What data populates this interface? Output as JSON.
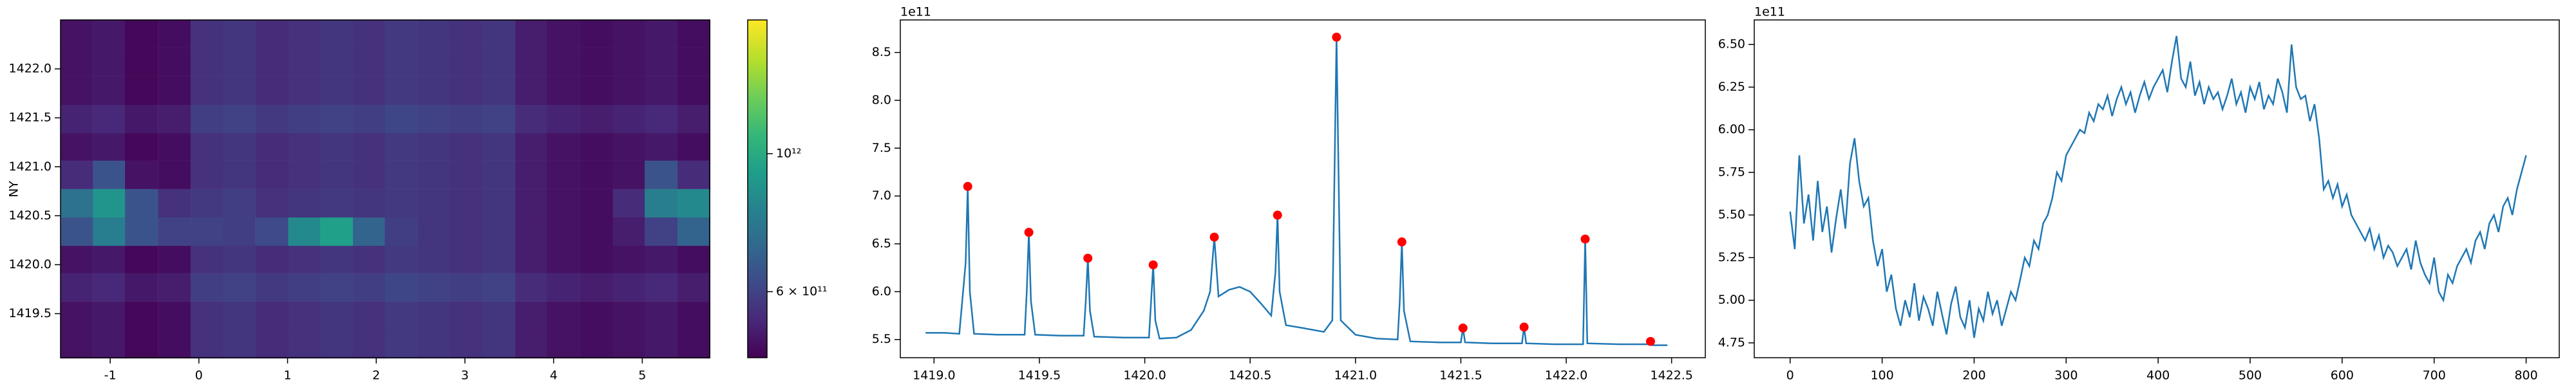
{
  "chart_data": [
    {
      "type": "heatmap",
      "ylabel": "NY",
      "x": [
        -1.38,
        -1.01,
        -0.65,
        -0.28,
        0.09,
        0.45,
        0.82,
        1.19,
        1.55,
        1.92,
        2.28,
        2.65,
        3.02,
        3.38,
        3.75,
        4.11,
        4.48,
        4.85,
        5.21,
        5.58
      ],
      "y": [
        1419.19,
        1419.48,
        1419.77,
        1420.06,
        1420.34,
        1420.63,
        1420.92,
        1421.21,
        1421.49,
        1421.78,
        1422.07,
        1422.36
      ],
      "z": [
        [
          500000000000.0,
          510000000000.0,
          480000000000.0,
          490000000000.0,
          560000000000.0,
          570000000000.0,
          550000000000.0,
          560000000000.0,
          570000000000.0,
          560000000000.0,
          580000000000.0,
          570000000000.0,
          560000000000.0,
          570000000000.0,
          520000000000.0,
          500000000000.0,
          490000000000.0,
          500000000000.0,
          510000000000.0,
          490000000000.0
        ],
        [
          500000000000.0,
          510000000000.0,
          480000000000.0,
          490000000000.0,
          560000000000.0,
          570000000000.0,
          550000000000.0,
          560000000000.0,
          570000000000.0,
          560000000000.0,
          580000000000.0,
          570000000000.0,
          560000000000.0,
          570000000000.0,
          520000000000.0,
          500000000000.0,
          490000000000.0,
          500000000000.0,
          510000000000.0,
          490000000000.0
        ],
        [
          530000000000.0,
          540000000000.0,
          510000000000.0,
          520000000000.0,
          590000000000.0,
          600000000000.0,
          580000000000.0,
          590000000000.0,
          600000000000.0,
          590000000000.0,
          610000000000.0,
          600000000000.0,
          590000000000.0,
          600000000000.0,
          550000000000.0,
          530000000000.0,
          520000000000.0,
          530000000000.0,
          540000000000.0,
          520000000000.0
        ],
        [
          500000000000.0,
          510000000000.0,
          480000000000.0,
          490000000000.0,
          560000000000.0,
          570000000000.0,
          550000000000.0,
          560000000000.0,
          570000000000.0,
          560000000000.0,
          580000000000.0,
          570000000000.0,
          560000000000.0,
          570000000000.0,
          520000000000.0,
          500000000000.0,
          490000000000.0,
          500000000000.0,
          510000000000.0,
          490000000000.0
        ],
        [
          650000000000.0,
          800000000000.0,
          650000000000.0,
          600000000000.0,
          600000000000.0,
          590000000000.0,
          620000000000.0,
          850000000000.0,
          950000000000.0,
          700000000000.0,
          590000000000.0,
          570000000000.0,
          560000000000.0,
          570000000000.0,
          520000000000.0,
          500000000000.0,
          490000000000.0,
          520000000000.0,
          600000000000.0,
          700000000000.0
        ],
        [
          750000000000.0,
          900000000000.0,
          650000000000.0,
          560000000000.0,
          580000000000.0,
          590000000000.0,
          560000000000.0,
          570000000000.0,
          580000000000.0,
          570000000000.0,
          580000000000.0,
          570000000000.0,
          560000000000.0,
          570000000000.0,
          520000000000.0,
          500000000000.0,
          490000000000.0,
          550000000000.0,
          800000000000.0,
          850000000000.0
        ],
        [
          550000000000.0,
          650000000000.0,
          500000000000.0,
          490000000000.0,
          560000000000.0,
          570000000000.0,
          550000000000.0,
          560000000000.0,
          570000000000.0,
          560000000000.0,
          580000000000.0,
          570000000000.0,
          560000000000.0,
          570000000000.0,
          520000000000.0,
          500000000000.0,
          490000000000.0,
          500000000000.0,
          650000000000.0,
          550000000000.0
        ],
        [
          500000000000.0,
          510000000000.0,
          480000000000.0,
          490000000000.0,
          560000000000.0,
          570000000000.0,
          550000000000.0,
          560000000000.0,
          570000000000.0,
          560000000000.0,
          580000000000.0,
          570000000000.0,
          560000000000.0,
          570000000000.0,
          520000000000.0,
          500000000000.0,
          490000000000.0,
          500000000000.0,
          510000000000.0,
          490000000000.0
        ],
        [
          530000000000.0,
          540000000000.0,
          510000000000.0,
          520000000000.0,
          590000000000.0,
          600000000000.0,
          580000000000.0,
          590000000000.0,
          600000000000.0,
          590000000000.0,
          610000000000.0,
          600000000000.0,
          590000000000.0,
          600000000000.0,
          550000000000.0,
          530000000000.0,
          520000000000.0,
          530000000000.0,
          540000000000.0,
          520000000000.0
        ],
        [
          500000000000.0,
          510000000000.0,
          480000000000.0,
          490000000000.0,
          560000000000.0,
          570000000000.0,
          550000000000.0,
          560000000000.0,
          570000000000.0,
          560000000000.0,
          580000000000.0,
          570000000000.0,
          560000000000.0,
          570000000000.0,
          520000000000.0,
          500000000000.0,
          490000000000.0,
          500000000000.0,
          510000000000.0,
          490000000000.0
        ],
        [
          500000000000.0,
          510000000000.0,
          480000000000.0,
          490000000000.0,
          560000000000.0,
          570000000000.0,
          550000000000.0,
          560000000000.0,
          570000000000.0,
          560000000000.0,
          580000000000.0,
          570000000000.0,
          560000000000.0,
          570000000000.0,
          520000000000.0,
          500000000000.0,
          490000000000.0,
          500000000000.0,
          510000000000.0,
          490000000000.0
        ],
        [
          500000000000.0,
          510000000000.0,
          480000000000.0,
          490000000000.0,
          560000000000.0,
          570000000000.0,
          550000000000.0,
          560000000000.0,
          570000000000.0,
          560000000000.0,
          580000000000.0,
          570000000000.0,
          560000000000.0,
          570000000000.0,
          520000000000.0,
          500000000000.0,
          490000000000.0,
          500000000000.0,
          510000000000.0,
          490000000000.0
        ]
      ],
      "xlim": [
        -1.56,
        5.76
      ],
      "ylim": [
        1419.05,
        1422.5
      ],
      "xticks": [
        -1,
        0,
        1,
        2,
        3,
        4,
        5
      ],
      "yticks": [
        1419.5,
        {
          "value": 1420,
          "label": "1420.0"
        },
        1420.5,
        {
          "value": 1421,
          "label": "1421.0"
        },
        1421.5,
        {
          "value": 1422,
          "label": "1422.0"
        }
      ],
      "colorbar": {
        "colormap": "viridis",
        "log": true,
        "clim": [
          470000000000.0,
          1640000000000.0
        ],
        "ticks": [
          {
            "value": 1000000000000.0,
            "label": "10¹²"
          },
          {
            "value": 600000000000.0,
            "label": "6 × 10¹¹"
          }
        ]
      }
    },
    {
      "type": "line",
      "color": "#1f77b4",
      "offset_text": "1e11",
      "x": [
        1418.96,
        1419.05,
        1419.12,
        1419.15,
        1419.16,
        1419.17,
        1419.19,
        1419.3,
        1419.43,
        1419.44,
        1419.45,
        1419.46,
        1419.48,
        1419.6,
        1419.71,
        1419.72,
        1419.73,
        1419.74,
        1419.76,
        1419.9,
        1420.02,
        1420.03,
        1420.04,
        1420.05,
        1420.07,
        1420.15,
        1420.22,
        1420.28,
        1420.31,
        1420.33,
        1420.35,
        1420.4,
        1420.45,
        1420.5,
        1420.55,
        1420.6,
        1420.62,
        1420.63,
        1420.64,
        1420.67,
        1420.75,
        1420.85,
        1420.89,
        1420.91,
        1420.93,
        1421.0,
        1421.1,
        1421.2,
        1421.21,
        1421.22,
        1421.23,
        1421.26,
        1421.4,
        1421.5,
        1421.51,
        1421.52,
        1421.65,
        1421.79,
        1421.8,
        1421.81,
        1421.95,
        1422.08,
        1422.09,
        1422.1,
        1422.25,
        1422.39,
        1422.4,
        1422.41,
        1422.48
      ],
      "values": [
        5.57,
        5.57,
        5.56,
        6.3,
        7.1,
        6.0,
        5.56,
        5.55,
        5.55,
        6.0,
        6.62,
        5.9,
        5.55,
        5.54,
        5.54,
        5.9,
        6.35,
        5.8,
        5.53,
        5.52,
        5.52,
        5.9,
        6.28,
        5.7,
        5.51,
        5.52,
        5.6,
        5.8,
        6.0,
        6.57,
        5.95,
        6.02,
        6.05,
        6.0,
        5.88,
        5.75,
        6.2,
        6.8,
        6.0,
        5.65,
        5.62,
        5.58,
        5.7,
        8.66,
        5.7,
        5.55,
        5.51,
        5.5,
        5.9,
        6.52,
        5.8,
        5.48,
        5.47,
        5.47,
        5.62,
        5.47,
        5.46,
        5.46,
        5.63,
        5.46,
        5.45,
        5.45,
        6.55,
        5.46,
        5.45,
        5.45,
        5.48,
        5.44,
        5.44
      ],
      "markers": {
        "color": "#ff0000",
        "x": [
          1419.16,
          1419.45,
          1419.73,
          1420.04,
          1420.33,
          1420.63,
          1420.91,
          1421.22,
          1421.51,
          1421.8,
          1422.09,
          1422.4
        ],
        "values": [
          7.1,
          6.62,
          6.35,
          6.28,
          6.57,
          6.8,
          8.66,
          6.52,
          5.62,
          5.63,
          6.55,
          5.48
        ]
      },
      "xlim": [
        1418.84,
        1422.66
      ],
      "ylim": [
        5.31,
        8.84
      ],
      "xticks": [
        {
          "value": 1419,
          "label": "1419.0"
        },
        1419.5,
        {
          "value": 1420,
          "label": "1420.0"
        },
        1420.5,
        {
          "value": 1421,
          "label": "1421.0"
        },
        1421.5,
        {
          "value": 1422,
          "label": "1422.0"
        },
        1422.5
      ],
      "yticks": [
        5.5,
        {
          "value": 6,
          "label": "6.0"
        },
        6.5,
        {
          "value": 7,
          "label": "7.0"
        },
        7.5,
        {
          "value": 8,
          "label": "8.0"
        },
        8.5
      ]
    },
    {
      "type": "line",
      "color": "#1f77b4",
      "offset_text": "1e11",
      "x": [
        0,
        5,
        10,
        15,
        20,
        25,
        30,
        35,
        40,
        45,
        50,
        55,
        60,
        65,
        70,
        75,
        80,
        85,
        90,
        95,
        100,
        105,
        110,
        115,
        120,
        125,
        130,
        135,
        140,
        145,
        150,
        155,
        160,
        165,
        170,
        175,
        180,
        185,
        190,
        195,
        200,
        205,
        210,
        215,
        220,
        225,
        230,
        235,
        240,
        245,
        250,
        255,
        260,
        265,
        270,
        275,
        280,
        285,
        290,
        295,
        300,
        305,
        310,
        315,
        320,
        325,
        330,
        335,
        340,
        345,
        350,
        355,
        360,
        365,
        370,
        375,
        380,
        385,
        390,
        395,
        400,
        405,
        410,
        415,
        420,
        425,
        430,
        435,
        440,
        445,
        450,
        455,
        460,
        465,
        470,
        475,
        480,
        485,
        490,
        495,
        500,
        505,
        510,
        515,
        520,
        525,
        530,
        535,
        540,
        545,
        550,
        555,
        560,
        565,
        570,
        575,
        580,
        585,
        590,
        595,
        600,
        605,
        610,
        615,
        620,
        625,
        630,
        635,
        640,
        645,
        650,
        655,
        660,
        665,
        670,
        675,
        680,
        685,
        690,
        695,
        700,
        705,
        710,
        715,
        720,
        725,
        730,
        735,
        740,
        745,
        750,
        755,
        760,
        765,
        770,
        775,
        780,
        785,
        790,
        795,
        800
      ],
      "values": [
        5.52,
        5.3,
        5.85,
        5.45,
        5.62,
        5.35,
        5.7,
        5.4,
        5.55,
        5.28,
        5.48,
        5.65,
        5.42,
        5.8,
        5.95,
        5.7,
        5.55,
        5.6,
        5.35,
        5.2,
        5.3,
        5.05,
        5.15,
        4.95,
        4.85,
        5.0,
        4.9,
        5.1,
        4.88,
        5.02,
        4.95,
        4.85,
        5.05,
        4.92,
        4.8,
        4.98,
        5.08,
        4.9,
        4.84,
        5.0,
        4.78,
        4.95,
        4.88,
        5.05,
        4.92,
        5.0,
        4.85,
        4.95,
        5.05,
        5.0,
        5.12,
        5.25,
        5.2,
        5.35,
        5.3,
        5.45,
        5.5,
        5.6,
        5.75,
        5.7,
        5.85,
        5.9,
        5.95,
        6.0,
        5.98,
        6.1,
        6.05,
        6.15,
        6.12,
        6.2,
        6.08,
        6.18,
        6.25,
        6.15,
        6.22,
        6.1,
        6.2,
        6.28,
        6.18,
        6.25,
        6.3,
        6.35,
        6.22,
        6.4,
        6.55,
        6.3,
        6.25,
        6.4,
        6.2,
        6.28,
        6.15,
        6.25,
        6.18,
        6.22,
        6.12,
        6.2,
        6.3,
        6.15,
        6.22,
        6.1,
        6.25,
        6.18,
        6.28,
        6.12,
        6.2,
        6.15,
        6.3,
        6.22,
        6.1,
        6.5,
        6.25,
        6.18,
        6.2,
        6.05,
        6.15,
        5.95,
        5.65,
        5.7,
        5.6,
        5.68,
        5.55,
        5.62,
        5.5,
        5.45,
        5.4,
        5.35,
        5.42,
        5.3,
        5.38,
        5.25,
        5.32,
        5.28,
        5.2,
        5.25,
        5.3,
        5.18,
        5.35,
        5.22,
        5.15,
        5.1,
        5.25,
        5.05,
        5.0,
        5.15,
        5.1,
        5.2,
        5.25,
        5.3,
        5.22,
        5.35,
        5.4,
        5.3,
        5.45,
        5.5,
        5.4,
        5.55,
        5.6,
        5.5,
        5.65,
        5.75,
        5.85
      ],
      "xlim": [
        -39,
        836
      ],
      "ylim": [
        4.663,
        6.644
      ],
      "xticks": [
        0,
        100,
        200,
        300,
        400,
        500,
        600,
        700,
        800
      ],
      "yticks": [
        4.75,
        {
          "value": 5,
          "label": "5.00"
        },
        5.25,
        {
          "value": 5.5,
          "label": "5.50"
        },
        5.75,
        {
          "value": 6,
          "label": "6.00"
        },
        6.25,
        {
          "value": 6.5,
          "label": "6.50"
        }
      ]
    }
  ]
}
